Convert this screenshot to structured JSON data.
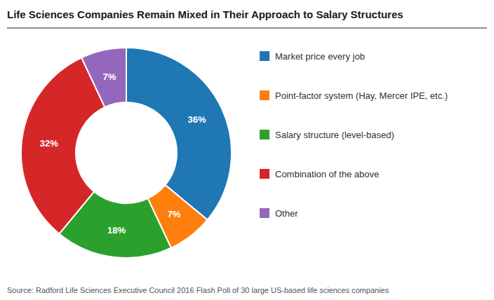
{
  "chart_data": {
    "type": "donut",
    "title": "Life Sciences Companies Remain Mixed in Their Approach to Salary Structures",
    "categories": [
      "Market price every job",
      "Point-factor system (Hay, Mercer IPE, etc.)",
      "Salary structure (level-based)",
      "Combination of the above",
      "Other"
    ],
    "values": [
      36,
      7,
      18,
      32,
      7
    ],
    "value_labels": [
      "36%",
      "7%",
      "18%",
      "32%",
      "7%"
    ],
    "data_labels": true,
    "legend": "right",
    "annotations": [
      "Source: Radford Life Sciences Executive Council 2016 Flash Poll of 30 large US-based life sciences companies"
    ]
  }
}
